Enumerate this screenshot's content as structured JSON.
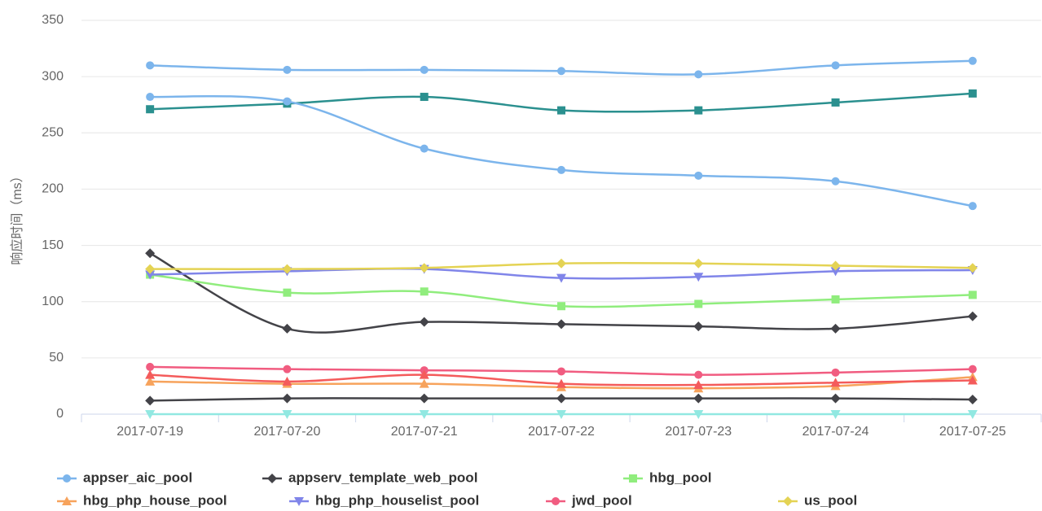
{
  "chart_data": {
    "type": "line",
    "y_axis_label": "响应时间（ms）",
    "categories": [
      "2017-07-19",
      "2017-07-20",
      "2017-07-21",
      "2017-07-22",
      "2017-07-23",
      "2017-07-24",
      "2017-07-25"
    ],
    "ylim": [
      0,
      350
    ],
    "yticks": [
      0,
      50,
      100,
      150,
      200,
      250,
      300,
      350
    ],
    "grid": true,
    "series": [
      {
        "name": "appser_aic_pool",
        "color": "#7cb5ec",
        "marker": "circle",
        "values": [
          310,
          306,
          306,
          305,
          302,
          310,
          314
        ]
      },
      {
        "name": "appserv_template_web_pool",
        "color": "#434348",
        "marker": "diamond",
        "values": [
          143,
          76,
          82,
          80,
          78,
          76,
          87
        ]
      },
      {
        "name": "hbg_pool",
        "color": "#90ed7d",
        "marker": "square",
        "values": [
          124,
          108,
          109,
          96,
          98,
          102,
          106
        ]
      },
      {
        "name": "hbg_php_house_pool",
        "color": "#f7a35c",
        "marker": "triangle",
        "values": [
          29,
          27,
          27,
          24,
          23,
          25,
          33
        ]
      },
      {
        "name": "hbg_php_houselist_pool",
        "color": "#8085e9",
        "marker": "triangle-down",
        "values": [
          124,
          127,
          129,
          121,
          122,
          127,
          128
        ]
      },
      {
        "name": "jwd_pool",
        "color": "#f15c80",
        "marker": "circle",
        "values": [
          42,
          40,
          39,
          38,
          35,
          37,
          40
        ]
      },
      {
        "name": "us_pool",
        "color": "#e4d354",
        "marker": "diamond",
        "values": [
          129,
          129,
          130,
          134,
          134,
          132,
          130
        ]
      },
      {
        "color": "#2b908f",
        "marker": "square",
        "values": [
          271,
          276,
          282,
          270,
          270,
          277,
          285
        ]
      },
      {
        "color": "#f45b5b",
        "marker": "triangle",
        "values": [
          35,
          29,
          35,
          27,
          26,
          28,
          30
        ]
      },
      {
        "color": "#91e8e1",
        "marker": "triangle-down",
        "values": [
          0,
          0,
          0,
          0,
          0,
          0,
          0
        ]
      },
      {
        "color": "#7cb5ec",
        "marker": "circle",
        "values": [
          282,
          278,
          236,
          217,
          212,
          207,
          185
        ]
      },
      {
        "color": "#434348",
        "marker": "diamond",
        "values": [
          12,
          14,
          14,
          14,
          14,
          14,
          13
        ]
      }
    ]
  }
}
